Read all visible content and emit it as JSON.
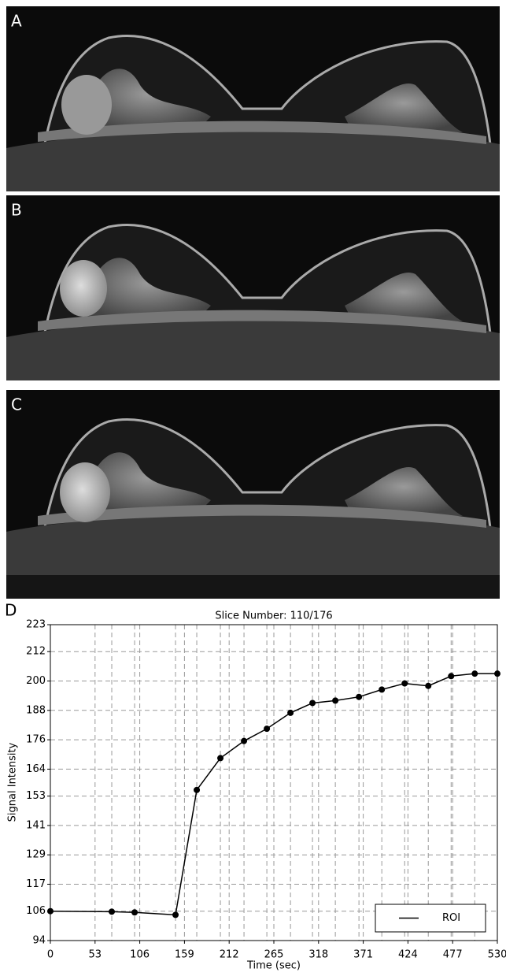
{
  "panels": [
    "A",
    "B",
    "C",
    "D"
  ],
  "chart_data": {
    "type": "line",
    "title": "Slice Number: 110/176",
    "x_label": "Time (sec)",
    "y_label": "Signal Intensity",
    "x": [
      0,
      72.8,
      99.9,
      148.4,
      173.6,
      201.6,
      229.6,
      256.7,
      284.7,
      310.8,
      337.9,
      365.9,
      393.0,
      420.1,
      448.1,
      475.2,
      503.2,
      530
    ],
    "series": [
      {
        "name": "ROI",
        "color": "#000000",
        "values": [
          106,
          105.8,
          105.5,
          104.5,
          155.5,
          168.5,
          175.5,
          180.5,
          187,
          191,
          192,
          193.5,
          196.5,
          199,
          198,
          202,
          203,
          203
        ]
      }
    ],
    "xlim": [
      0,
      530
    ],
    "xticks": [
      0,
      53,
      106,
      159,
      212,
      265,
      318,
      371,
      424,
      477,
      530
    ],
    "ylim": [
      94,
      223
    ],
    "yticks": [
      94,
      106,
      117,
      129,
      141,
      153,
      164,
      176,
      188,
      200,
      212,
      223
    ],
    "grid": true,
    "legend": "lower right"
  }
}
